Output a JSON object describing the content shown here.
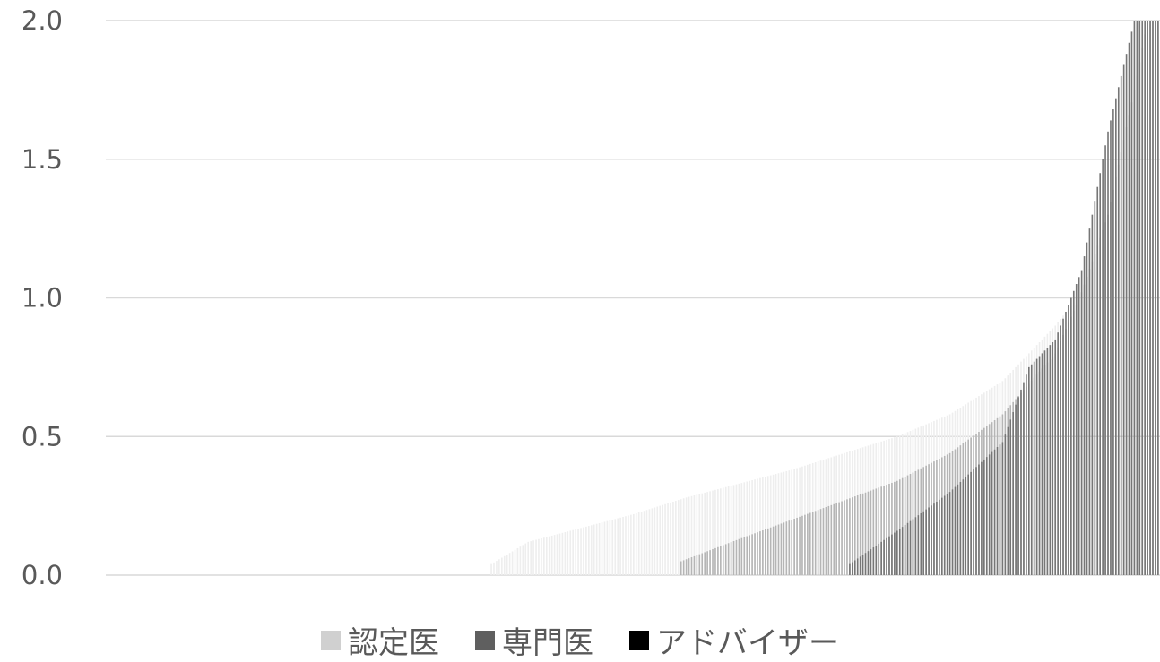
{
  "chart_data": {
    "type": "bar",
    "stacked": true,
    "title": "",
    "xlabel": "",
    "ylabel": "",
    "ylim": [
      0,
      2.0
    ],
    "yticks": [
      "0.0",
      "0.5",
      "1.0",
      "1.5",
      "2.0"
    ],
    "grid": true,
    "legend_position": "bottom",
    "bar_count": 400,
    "series": [
      {
        "name": "認定医",
        "color": "#d0d0d0",
        "curve": [
          [
            0,
            0
          ],
          [
            145,
            0
          ],
          [
            146,
            0.04
          ],
          [
            160,
            0.12
          ],
          [
            180,
            0.17
          ],
          [
            200,
            0.22
          ],
          [
            220,
            0.28
          ],
          [
            240,
            0.33
          ],
          [
            260,
            0.38
          ],
          [
            280,
            0.44
          ],
          [
            300,
            0.5
          ],
          [
            320,
            0.58
          ],
          [
            340,
            0.7
          ],
          [
            350,
            0.8
          ],
          [
            360,
            0.9
          ],
          [
            370,
            1.02
          ],
          [
            380,
            1.2
          ],
          [
            390,
            1.45
          ],
          [
            395,
            1.7
          ],
          [
            400,
            2.0
          ]
        ]
      },
      {
        "name": "専門医",
        "color": "#5f5f5f",
        "curve": [
          [
            0,
            0
          ],
          [
            217,
            0
          ],
          [
            218,
            0.05
          ],
          [
            240,
            0.13
          ],
          [
            260,
            0.2
          ],
          [
            280,
            0.27
          ],
          [
            300,
            0.34
          ],
          [
            320,
            0.44
          ],
          [
            340,
            0.58
          ],
          [
            360,
            0.8
          ],
          [
            370,
            1.02
          ],
          [
            380,
            1.3
          ],
          [
            390,
            1.75
          ],
          [
            395,
            2.0
          ],
          [
            400,
            2.0
          ]
        ]
      },
      {
        "name": "アドバイザー",
        "color": "#000000",
        "curve": [
          [
            0,
            0
          ],
          [
            281,
            0
          ],
          [
            282,
            0.04
          ],
          [
            300,
            0.16
          ],
          [
            320,
            0.3
          ],
          [
            340,
            0.48
          ],
          [
            350,
            0.75
          ],
          [
            360,
            0.85
          ],
          [
            370,
            1.1
          ],
          [
            380,
            1.6
          ],
          [
            390,
            2.0
          ],
          [
            400,
            2.0
          ]
        ]
      }
    ]
  }
}
